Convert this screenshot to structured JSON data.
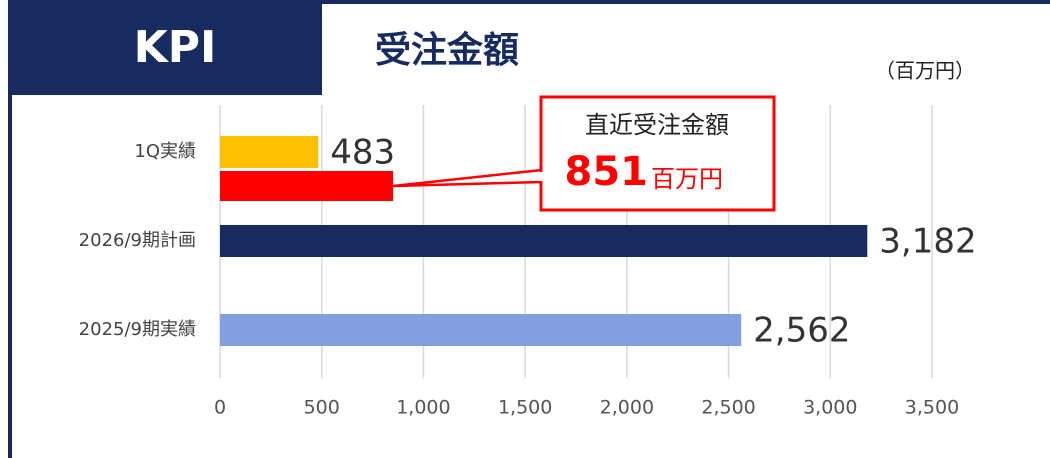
{
  "chart_data": {
    "type": "bar",
    "badge": "KPI",
    "title": "受注金額",
    "unit_label": "（百万円）",
    "categories": [
      "1Q実績",
      "2026/9期計画",
      "2025/9期実績"
    ],
    "values": [
      483,
      3182,
      2562
    ],
    "value_labels": [
      "483",
      "3,182",
      "2,562"
    ],
    "colors": [
      "#ffc000",
      "#172b5e",
      "#849ee2"
    ],
    "annotation": {
      "title": "直近受注金額",
      "value": 851,
      "unit": "百万円",
      "color": "#ff0000"
    },
    "xlim": [
      0,
      3500
    ],
    "xticks": [
      0,
      500,
      {
        "value": 1000,
        "label": "1,000"
      },
      {
        "value": 1500,
        "label": "1,500"
      },
      {
        "value": 2000,
        "label": "2,000"
      },
      {
        "value": 2500,
        "label": "2,500"
      },
      {
        "value": 3000,
        "label": "3,000"
      },
      {
        "value": 3500,
        "label": "3,500"
      }
    ],
    "grid": true
  }
}
